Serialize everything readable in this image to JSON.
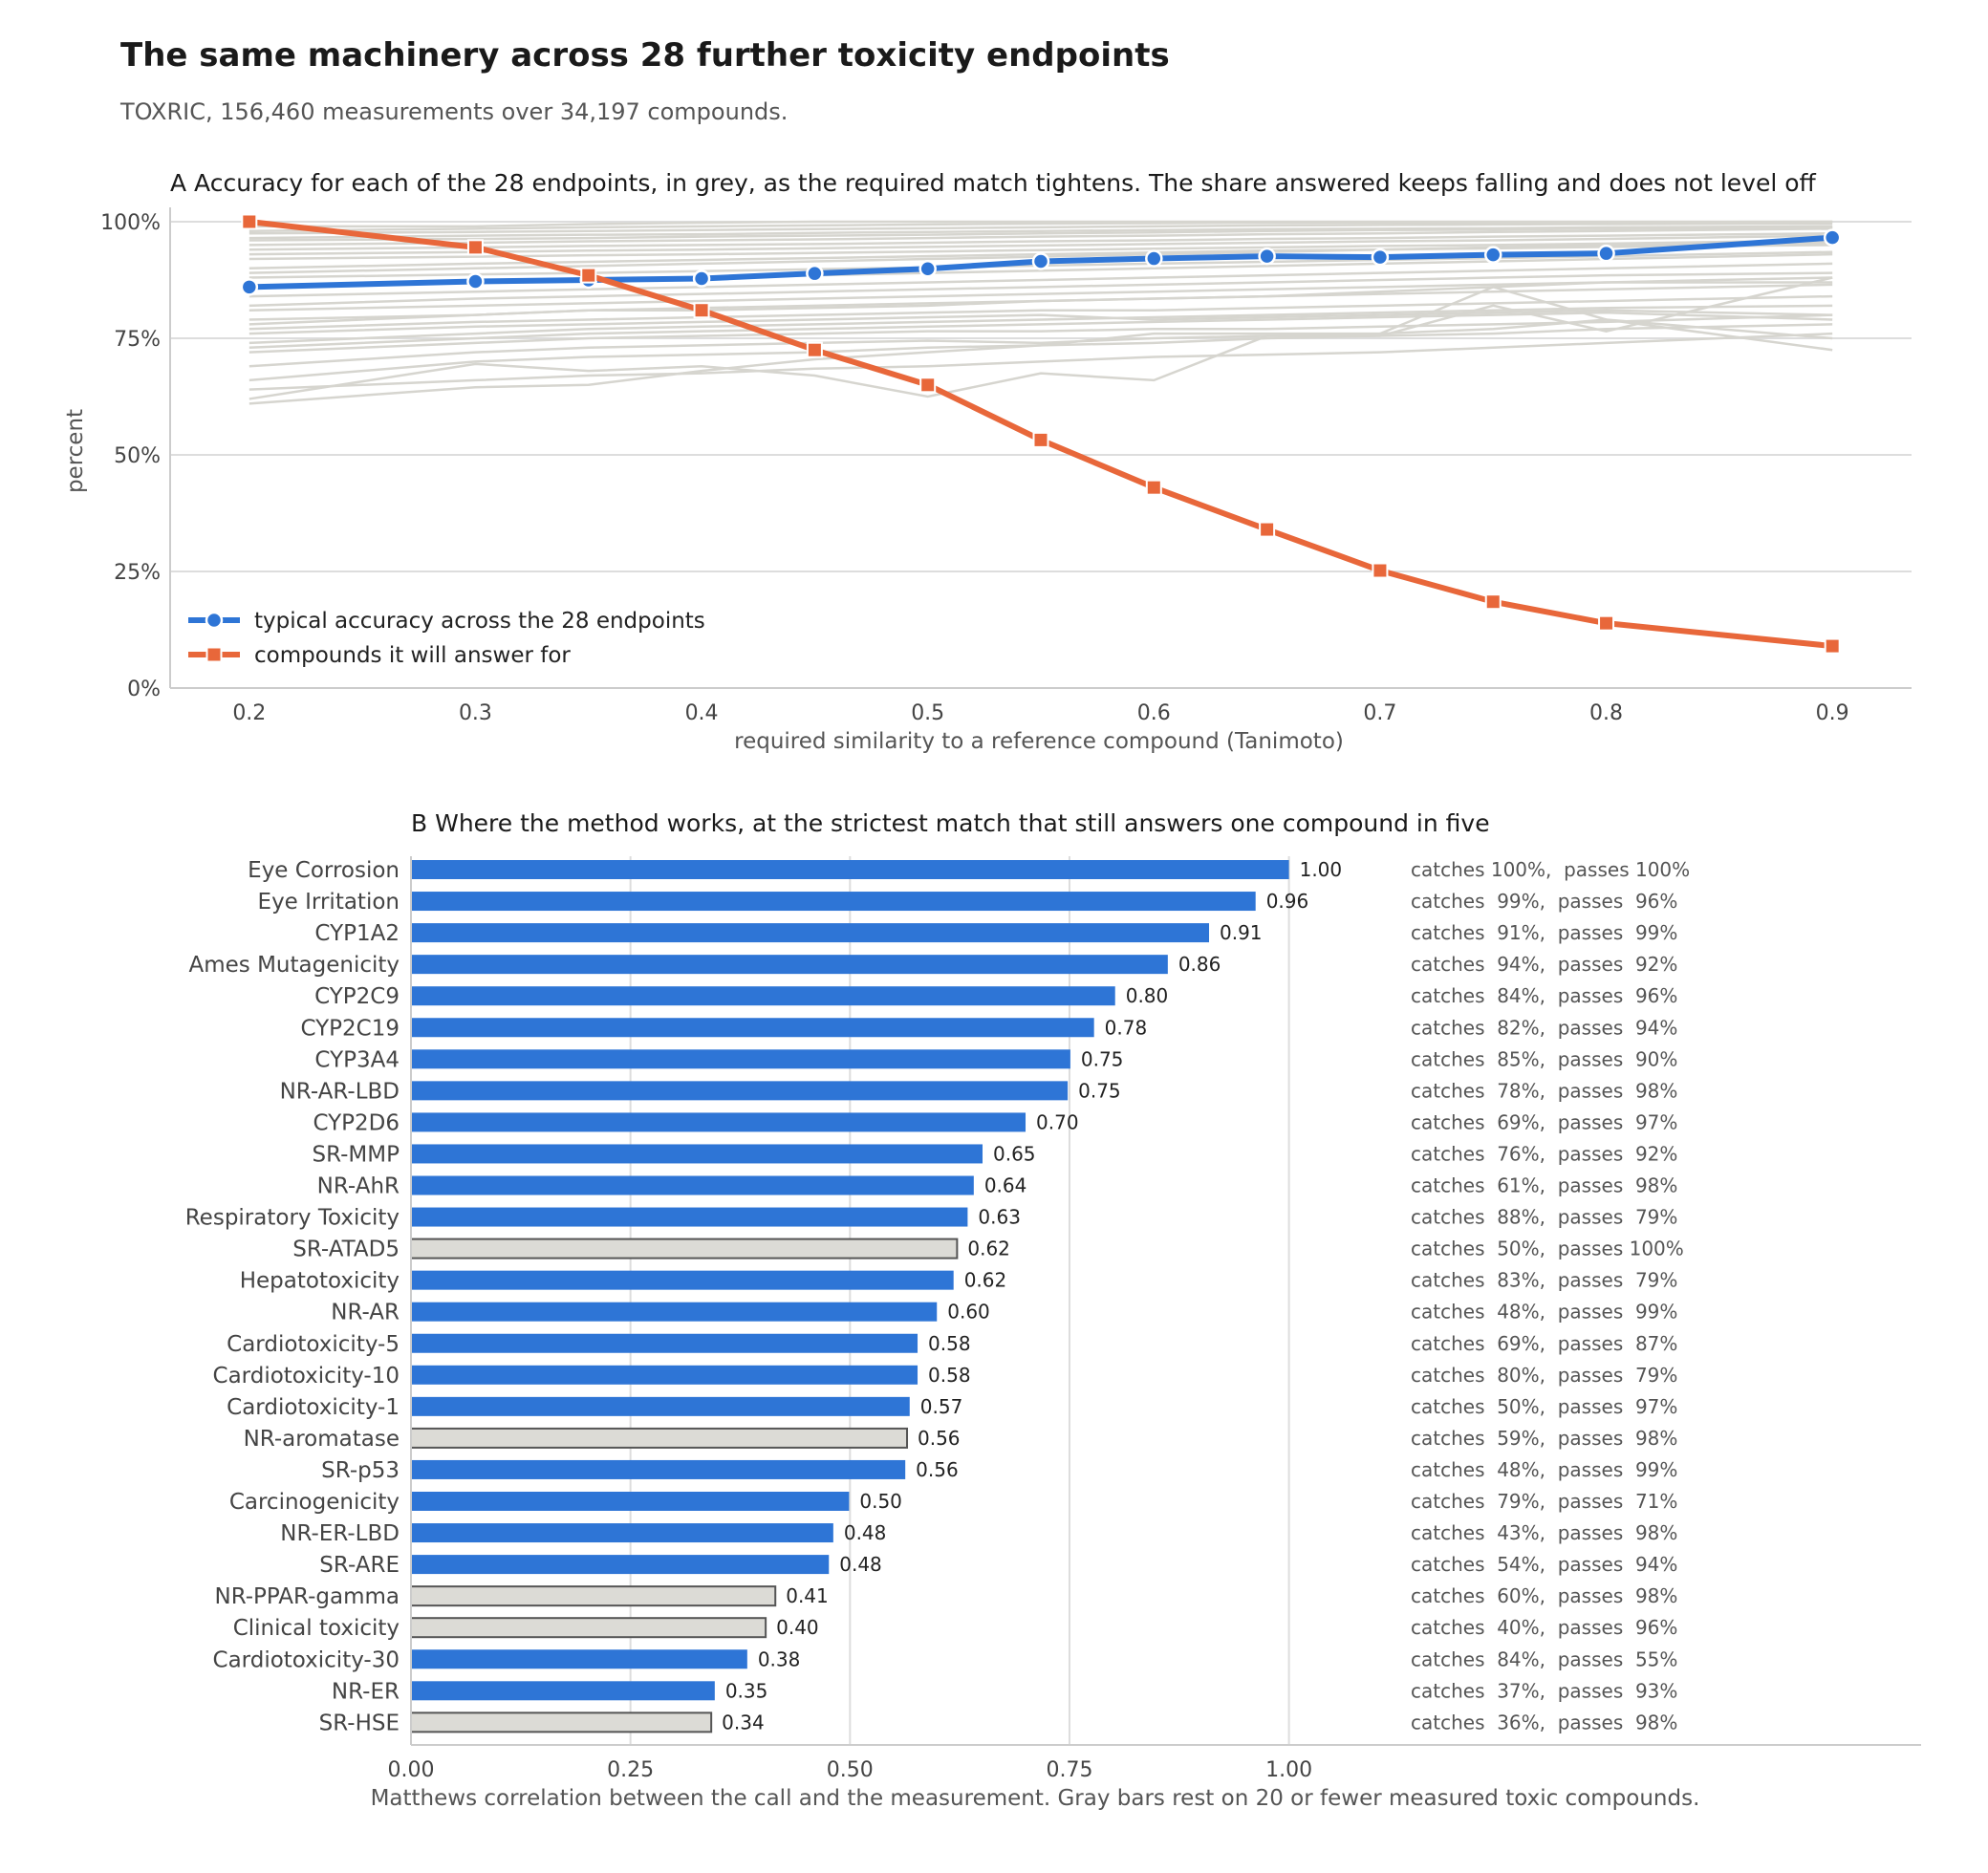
{
  "title": "The same machinery across 28 further toxicity endpoints",
  "subtitle": "TOXRIC, 156,460 measurements over 34,197 compounds.",
  "colors": {
    "accuracy": "#2e75d6",
    "coverage": "#e8673a",
    "endpoint_lines": "#d6d5cf",
    "small_bar_fill": "#dcdbd6",
    "small_bar_edge": "#555555"
  },
  "chart_data": [
    {
      "type": "line",
      "title": "A   Accuracy for each of the 28 endpoints, in grey, as the required match tightens. The share answered keeps falling and does not level off",
      "xlabel": "required similarity to a reference compound (Tanimoto)",
      "ylabel": "percent",
      "xlim": [
        0.165,
        0.935
      ],
      "ylim": [
        0,
        100
      ],
      "xticks": [
        0.2,
        0.3,
        0.4,
        0.5,
        0.6,
        0.7,
        0.8,
        0.9
      ],
      "xtick_labels": [
        "0.2",
        "0.3",
        "0.4",
        "0.5",
        "0.6",
        "0.7",
        "0.8",
        "0.9"
      ],
      "yticks": [
        0,
        25,
        50,
        75,
        100
      ],
      "ytick_labels": [
        "0%",
        "25%",
        "50%",
        "75%",
        "100%"
      ],
      "grid": "horizontal",
      "legend": "lower-left",
      "x": [
        0.2,
        0.3,
        0.35,
        0.4,
        0.45,
        0.5,
        0.55,
        0.6,
        0.65,
        0.7,
        0.75,
        0.8,
        0.9
      ],
      "series": [
        {
          "name": "typical accuracy across the 28 endpoints",
          "marker": "circle",
          "values": [
            86,
            87.2,
            87.5,
            87.8,
            88.9,
            89.9,
            91.5,
            92.1,
            92.6,
            92.4,
            92.9,
            93.2,
            96.6
          ]
        },
        {
          "name": "compounds it will answer for",
          "marker": "square",
          "values": [
            100,
            94.5,
            88.5,
            81,
            72.5,
            65,
            53.2,
            43,
            34,
            25.2,
            18.5,
            13.9,
            9
          ]
        }
      ],
      "endpoint_series": [
        [
          99,
          99,
          99.5,
          99.8,
          100,
          100,
          100,
          100,
          100,
          100,
          100,
          100,
          100
        ],
        [
          98,
          98.5,
          98.8,
          99,
          99.2,
          99.4,
          99.6,
          99.7,
          99.8,
          99.8,
          99.8,
          99.9,
          100
        ],
        [
          97.5,
          97.8,
          98,
          98.2,
          98.4,
          98.6,
          98.8,
          99,
          99.2,
          99.3,
          99.4,
          99.5,
          99.6
        ],
        [
          96.5,
          97,
          97.2,
          97.3,
          97.6,
          97.8,
          98,
          98.2,
          98.4,
          98.5,
          98.6,
          98.8,
          99
        ],
        [
          96,
          96.3,
          96.5,
          96.8,
          97,
          97.2,
          97.5,
          97.7,
          98,
          98.2,
          98.3,
          98.5,
          98.8
        ],
        [
          95,
          95.5,
          95.8,
          96,
          96.2,
          96.5,
          96.8,
          97,
          97.3,
          97.5,
          97.8,
          98,
          98.5
        ],
        [
          94,
          94.5,
          94.8,
          95,
          95.2,
          95.5,
          95.8,
          96,
          96.3,
          96.5,
          96.8,
          97,
          97.5
        ],
        [
          93,
          93.5,
          93.8,
          94,
          94.3,
          94.6,
          94.9,
          95.2,
          95.5,
          95.8,
          96,
          96.3,
          97
        ],
        [
          92,
          92.5,
          92.8,
          93,
          93.3,
          93.6,
          93.9,
          94.2,
          94.5,
          94.8,
          95,
          95.3,
          96
        ],
        [
          90,
          91,
          91.4,
          91.8,
          92.2,
          92.6,
          93,
          93.4,
          93.8,
          94,
          94.3,
          94.6,
          95
        ],
        [
          89,
          90,
          90.5,
          91,
          91.5,
          92,
          92.5,
          93,
          93.5,
          94,
          94.5,
          95,
          95.5
        ],
        [
          88,
          88.7,
          89,
          89.4,
          89.8,
          90.2,
          90.6,
          91,
          91.4,
          91.8,
          92.2,
          92.6,
          93.5
        ],
        [
          86,
          87,
          87.5,
          88,
          88.5,
          89,
          89.5,
          90,
          90.5,
          91,
          91.5,
          92,
          93
        ],
        [
          84,
          85,
          85.5,
          86,
          86.5,
          87,
          87.5,
          88,
          88.5,
          89,
          89.5,
          90,
          91
        ],
        [
          82,
          83.5,
          84,
          84.5,
          85,
          85.5,
          86,
          86.5,
          87,
          87.5,
          88,
          88.5,
          89
        ],
        [
          81,
          82,
          82.5,
          83,
          83.5,
          84,
          84.5,
          85,
          85.5,
          86,
          86.5,
          87,
          88
        ],
        [
          78,
          80,
          81,
          81.5,
          82,
          82.5,
          83,
          83.5,
          84,
          84.5,
          85,
          85.5,
          86.5
        ],
        [
          77,
          78.5,
          79,
          79.5,
          80,
          80.5,
          81,
          81,
          81.5,
          82,
          82.5,
          83,
          84
        ],
        [
          76,
          77.5,
          78,
          78.5,
          79,
          79.5,
          80,
          79,
          79.5,
          80,
          80.5,
          81,
          80
        ],
        [
          74,
          76,
          77,
          77.5,
          78,
          78.5,
          79,
          79.5,
          80,
          80.5,
          81,
          81.5,
          82
        ],
        [
          73,
          75,
          76,
          76.5,
          77,
          77.5,
          78,
          78.5,
          79,
          79.5,
          80,
          80.5,
          79
        ],
        [
          72,
          74,
          75,
          75.5,
          76,
          76.5,
          76.5,
          77,
          77,
          77.5,
          78,
          78.5,
          80
        ],
        [
          69,
          72,
          73,
          73.5,
          74,
          74.5,
          74,
          75,
          75.5,
          76,
          86,
          79,
          75
        ],
        [
          66,
          70,
          71,
          71.5,
          72,
          73,
          73.5,
          74,
          75,
          75.5,
          76,
          77,
          78
        ],
        [
          62,
          69.5,
          68,
          69,
          67,
          62.5,
          67.5,
          66,
          75.5,
          75.5,
          82,
          76.5,
          88
        ],
        [
          61,
          64.5,
          65,
          68,
          70.5,
          72,
          73.5,
          76,
          76,
          76,
          77,
          79,
          72.5
        ],
        [
          64,
          66,
          67,
          67.5,
          68.5,
          69,
          70,
          71,
          71.5,
          72,
          73,
          74,
          76
        ],
        [
          79,
          80,
          81,
          81,
          81.5,
          82,
          83,
          83.5,
          84,
          85,
          86,
          87,
          87
        ]
      ]
    },
    {
      "type": "bar",
      "orientation": "horizontal",
      "title": "B   Where the method works, at the strictest match that still answers one compound in five",
      "xlabel": "Matthews correlation between the call and the measurement. Gray bars rest on 20 or fewer measured toxic compounds.",
      "xlim": [
        0,
        1.72
      ],
      "xticks": [
        0,
        0.25,
        0.5,
        0.75,
        1.0
      ],
      "xtick_labels": [
        "0.00",
        "0.25",
        "0.50",
        "0.75",
        "1.00"
      ],
      "grid": "vertical",
      "categories": [
        "Eye Corrosion",
        "Eye Irritation",
        "CYP1A2",
        "Ames Mutagenicity",
        "CYP2C9",
        "CYP2C19",
        "CYP3A4",
        "NR-AR-LBD",
        "CYP2D6",
        "SR-MMP",
        "NR-AhR",
        "Respiratory Toxicity",
        "SR-ATAD5",
        "Hepatotoxicity",
        "NR-AR",
        "Cardiotoxicity-5",
        "Cardiotoxicity-10",
        "Cardiotoxicity-1",
        "NR-aromatase",
        "SR-p53",
        "Carcinogenicity",
        "NR-ER-LBD",
        "SR-ARE",
        "NR-PPAR-gamma",
        "Clinical toxicity",
        "Cardiotoxicity-30",
        "NR-ER",
        "SR-HSE"
      ],
      "values": [
        1.0,
        0.962,
        0.909,
        0.862,
        0.802,
        0.778,
        0.751,
        0.748,
        0.7,
        0.651,
        0.641,
        0.634,
        0.622,
        0.618,
        0.599,
        0.577,
        0.577,
        0.568,
        0.565,
        0.563,
        0.499,
        0.481,
        0.476,
        0.415,
        0.404,
        0.383,
        0.346,
        0.342
      ],
      "value_labels": [
        "1.00",
        "0.96",
        "0.91",
        "0.86",
        "0.80",
        "0.78",
        "0.75",
        "0.75",
        "0.70",
        "0.65",
        "0.64",
        "0.63",
        "0.62",
        "0.62",
        "0.60",
        "0.58",
        "0.58",
        "0.57",
        "0.56",
        "0.56",
        "0.50",
        "0.48",
        "0.48",
        "0.41",
        "0.40",
        "0.38",
        "0.35",
        "0.34"
      ],
      "small_sample": [
        false,
        false,
        false,
        false,
        false,
        false,
        false,
        false,
        false,
        false,
        false,
        false,
        true,
        false,
        false,
        false,
        false,
        false,
        true,
        false,
        false,
        false,
        false,
        true,
        true,
        false,
        false,
        true
      ],
      "annotations": [
        "catches 100%,  passes 100%",
        "catches  99%,  passes  96%",
        "catches  91%,  passes  99%",
        "catches  94%,  passes  92%",
        "catches  84%,  passes  96%",
        "catches  82%,  passes  94%",
        "catches  85%,  passes  90%",
        "catches  78%,  passes  98%",
        "catches  69%,  passes  97%",
        "catches  76%,  passes  92%",
        "catches  61%,  passes  98%",
        "catches  88%,  passes  79%",
        "catches  50%,  passes 100%",
        "catches  83%,  passes  79%",
        "catches  48%,  passes  99%",
        "catches  69%,  passes  87%",
        "catches  80%,  passes  79%",
        "catches  50%,  passes  97%",
        "catches  59%,  passes  98%",
        "catches  48%,  passes  99%",
        "catches  79%,  passes  71%",
        "catches  43%,  passes  98%",
        "catches  54%,  passes  94%",
        "catches  60%,  passes  98%",
        "catches  40%,  passes  96%",
        "catches  84%,  passes  55%",
        "catches  37%,  passes  93%",
        "catches  36%,  passes  98%"
      ]
    }
  ]
}
